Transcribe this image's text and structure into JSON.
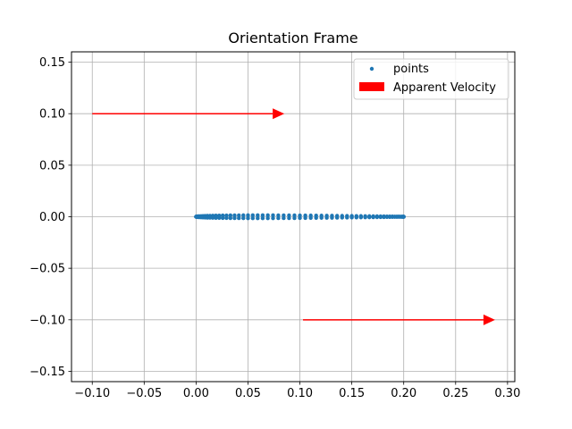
{
  "chart_data": {
    "type": "scatter",
    "title": "Orientation Frame",
    "xlabel": "",
    "ylabel": "",
    "xlim": [
      -0.12,
      0.307
    ],
    "ylim": [
      -0.16,
      0.16
    ],
    "grid": true,
    "legend_position": "top-right",
    "xticks": [
      -0.1,
      -0.05,
      0.0,
      0.05,
      0.1,
      0.15,
      0.2,
      0.25,
      0.3
    ],
    "xtick_labels": [
      "−0.10",
      "−0.05",
      "0.00",
      "0.05",
      "0.10",
      "0.15",
      "0.20",
      "0.25",
      "0.30"
    ],
    "yticks": [
      -0.15,
      -0.1,
      -0.05,
      0.0,
      0.05,
      0.1,
      0.15
    ],
    "ytick_labels": [
      "−0.15",
      "−0.10",
      "−0.05",
      "0.00",
      "0.05",
      "0.10",
      "0.15"
    ],
    "series": [
      {
        "name": "points",
        "kind": "scatter",
        "color": "#1f77b4",
        "shape": "NACA 0012 airfoil outline, chord 0.20, centered at y=0",
        "chord_start": [
          0.0,
          0.0
        ],
        "chord_end": [
          0.2,
          0.0
        ],
        "max_half_thickness": 0.012,
        "point_count": 120
      }
    ],
    "arrows": [
      {
        "name": "Apparent Velocity",
        "color": "#ff0000",
        "start": [
          -0.1,
          0.1
        ],
        "end": [
          0.085,
          0.1
        ]
      },
      {
        "name": "Apparent Velocity",
        "color": "#ff0000",
        "start": [
          0.103,
          -0.1
        ],
        "end": [
          0.288,
          -0.1
        ]
      }
    ],
    "legend": [
      {
        "label": "points",
        "marker": "dot",
        "color": "#1f77b4"
      },
      {
        "label": "Apparent Velocity",
        "marker": "rect",
        "color": "#ff0000"
      }
    ]
  }
}
